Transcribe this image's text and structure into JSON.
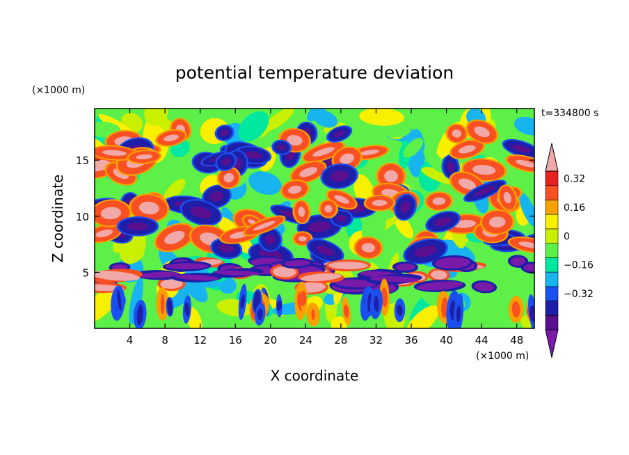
{
  "chart_data": {
    "type": "heatmap",
    "title": "potential temperature deviation",
    "xlabel": "X coordinate",
    "ylabel": "Z coordinate",
    "x_unit": "(×1000 m)",
    "y_unit": "(×1000 m)",
    "time_label": "t=334800 s",
    "xlim": [
      0,
      50
    ],
    "ylim": [
      0,
      19.6
    ],
    "x_ticks": [
      4,
      8,
      12,
      16,
      20,
      24,
      28,
      32,
      36,
      40,
      44,
      48
    ],
    "y_ticks": [
      5,
      10,
      15
    ],
    "colorbar": {
      "levels": [
        -0.48,
        -0.4,
        -0.32,
        -0.24,
        -0.16,
        -0.08,
        0,
        0.08,
        0.16,
        0.24,
        0.32,
        0.4
      ],
      "tick_labels": [
        "0.32",
        "0.16",
        "0",
        "−0.16",
        "−0.32"
      ],
      "tick_values": [
        0.32,
        0.16,
        0,
        -0.16,
        -0.32
      ],
      "colors": [
        "#7a1aa8",
        "#5a0f8f",
        "#1e1ea8",
        "#1a50f0",
        "#18b4f0",
        "#00e8a0",
        "#5cf048",
        "#c8f000",
        "#f8f000",
        "#f8a000",
        "#f85020",
        "#e82020",
        "#f0a8a8"
      ],
      "extend": "both"
    }
  }
}
